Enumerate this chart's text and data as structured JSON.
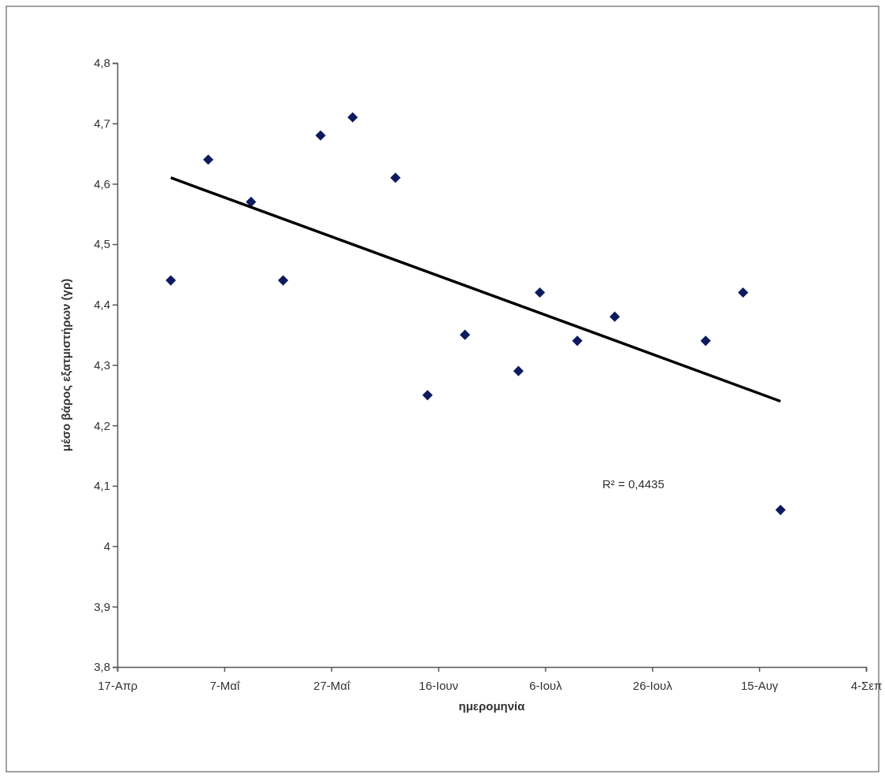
{
  "chart_data": {
    "type": "scatter",
    "xlabel": "ημερομηνία",
    "ylabel": "μέσο βάρος εξατμιστήρων (γρ)",
    "annotations": [
      "R² = 0,4435"
    ],
    "xlim": [
      "--04-17",
      "--09-04"
    ],
    "xticks": [
      {
        "value": "--04-17",
        "label": "17-Απρ"
      },
      {
        "value": "--05-07",
        "label": "7-Μαΐ"
      },
      {
        "value": "--05-27",
        "label": "27-Μαΐ"
      },
      {
        "value": "--06-16",
        "label": "16-Ιουν"
      },
      {
        "value": "--07-06",
        "label": "6-Ιουλ"
      },
      {
        "value": "--07-26",
        "label": "26-Ιουλ"
      },
      {
        "value": "--08-15",
        "label": "15-Αυγ"
      },
      {
        "value": "--09-04",
        "label": "4-Σεπ"
      }
    ],
    "ylim": [
      3.8,
      4.8
    ],
    "yticks": [
      {
        "value": 3.8,
        "label": "3,8"
      },
      {
        "value": 3.9,
        "label": "3,9"
      },
      4,
      {
        "value": 4.1,
        "label": "4,1"
      },
      {
        "value": 4.2,
        "label": "4,2"
      },
      {
        "value": 4.3,
        "label": "4,3"
      },
      {
        "value": 4.4,
        "label": "4,4"
      },
      {
        "value": 4.5,
        "label": "4,5"
      },
      {
        "value": 4.6,
        "label": "4,6"
      },
      {
        "value": 4.7,
        "label": "4,7"
      },
      {
        "value": 4.8,
        "label": "4,8"
      }
    ],
    "marker": "diamond",
    "grid": false,
    "series": [
      {
        "color": "#0d1b5e",
        "x": [
          "--04-27",
          "--05-04",
          "--05-12",
          "--05-18",
          "--05-25",
          "--05-31",
          "--06-08",
          "--06-14",
          "--06-21",
          "--07-01",
          "--07-05",
          "--07-12",
          "--07-19",
          "--08-05",
          "--08-12",
          "--08-19"
        ],
        "values": [
          4.44,
          4.64,
          4.57,
          4.44,
          4.68,
          4.71,
          4.61,
          4.25,
          4.35,
          4.29,
          4.42,
          4.34,
          4.38,
          4.34,
          4.42,
          4.06
        ]
      },
      {
        "type": "line",
        "marker": "none",
        "color": "#000000",
        "x": [
          "--04-27",
          "--08-19"
        ],
        "values": [
          4.61,
          4.24
        ]
      }
    ]
  }
}
